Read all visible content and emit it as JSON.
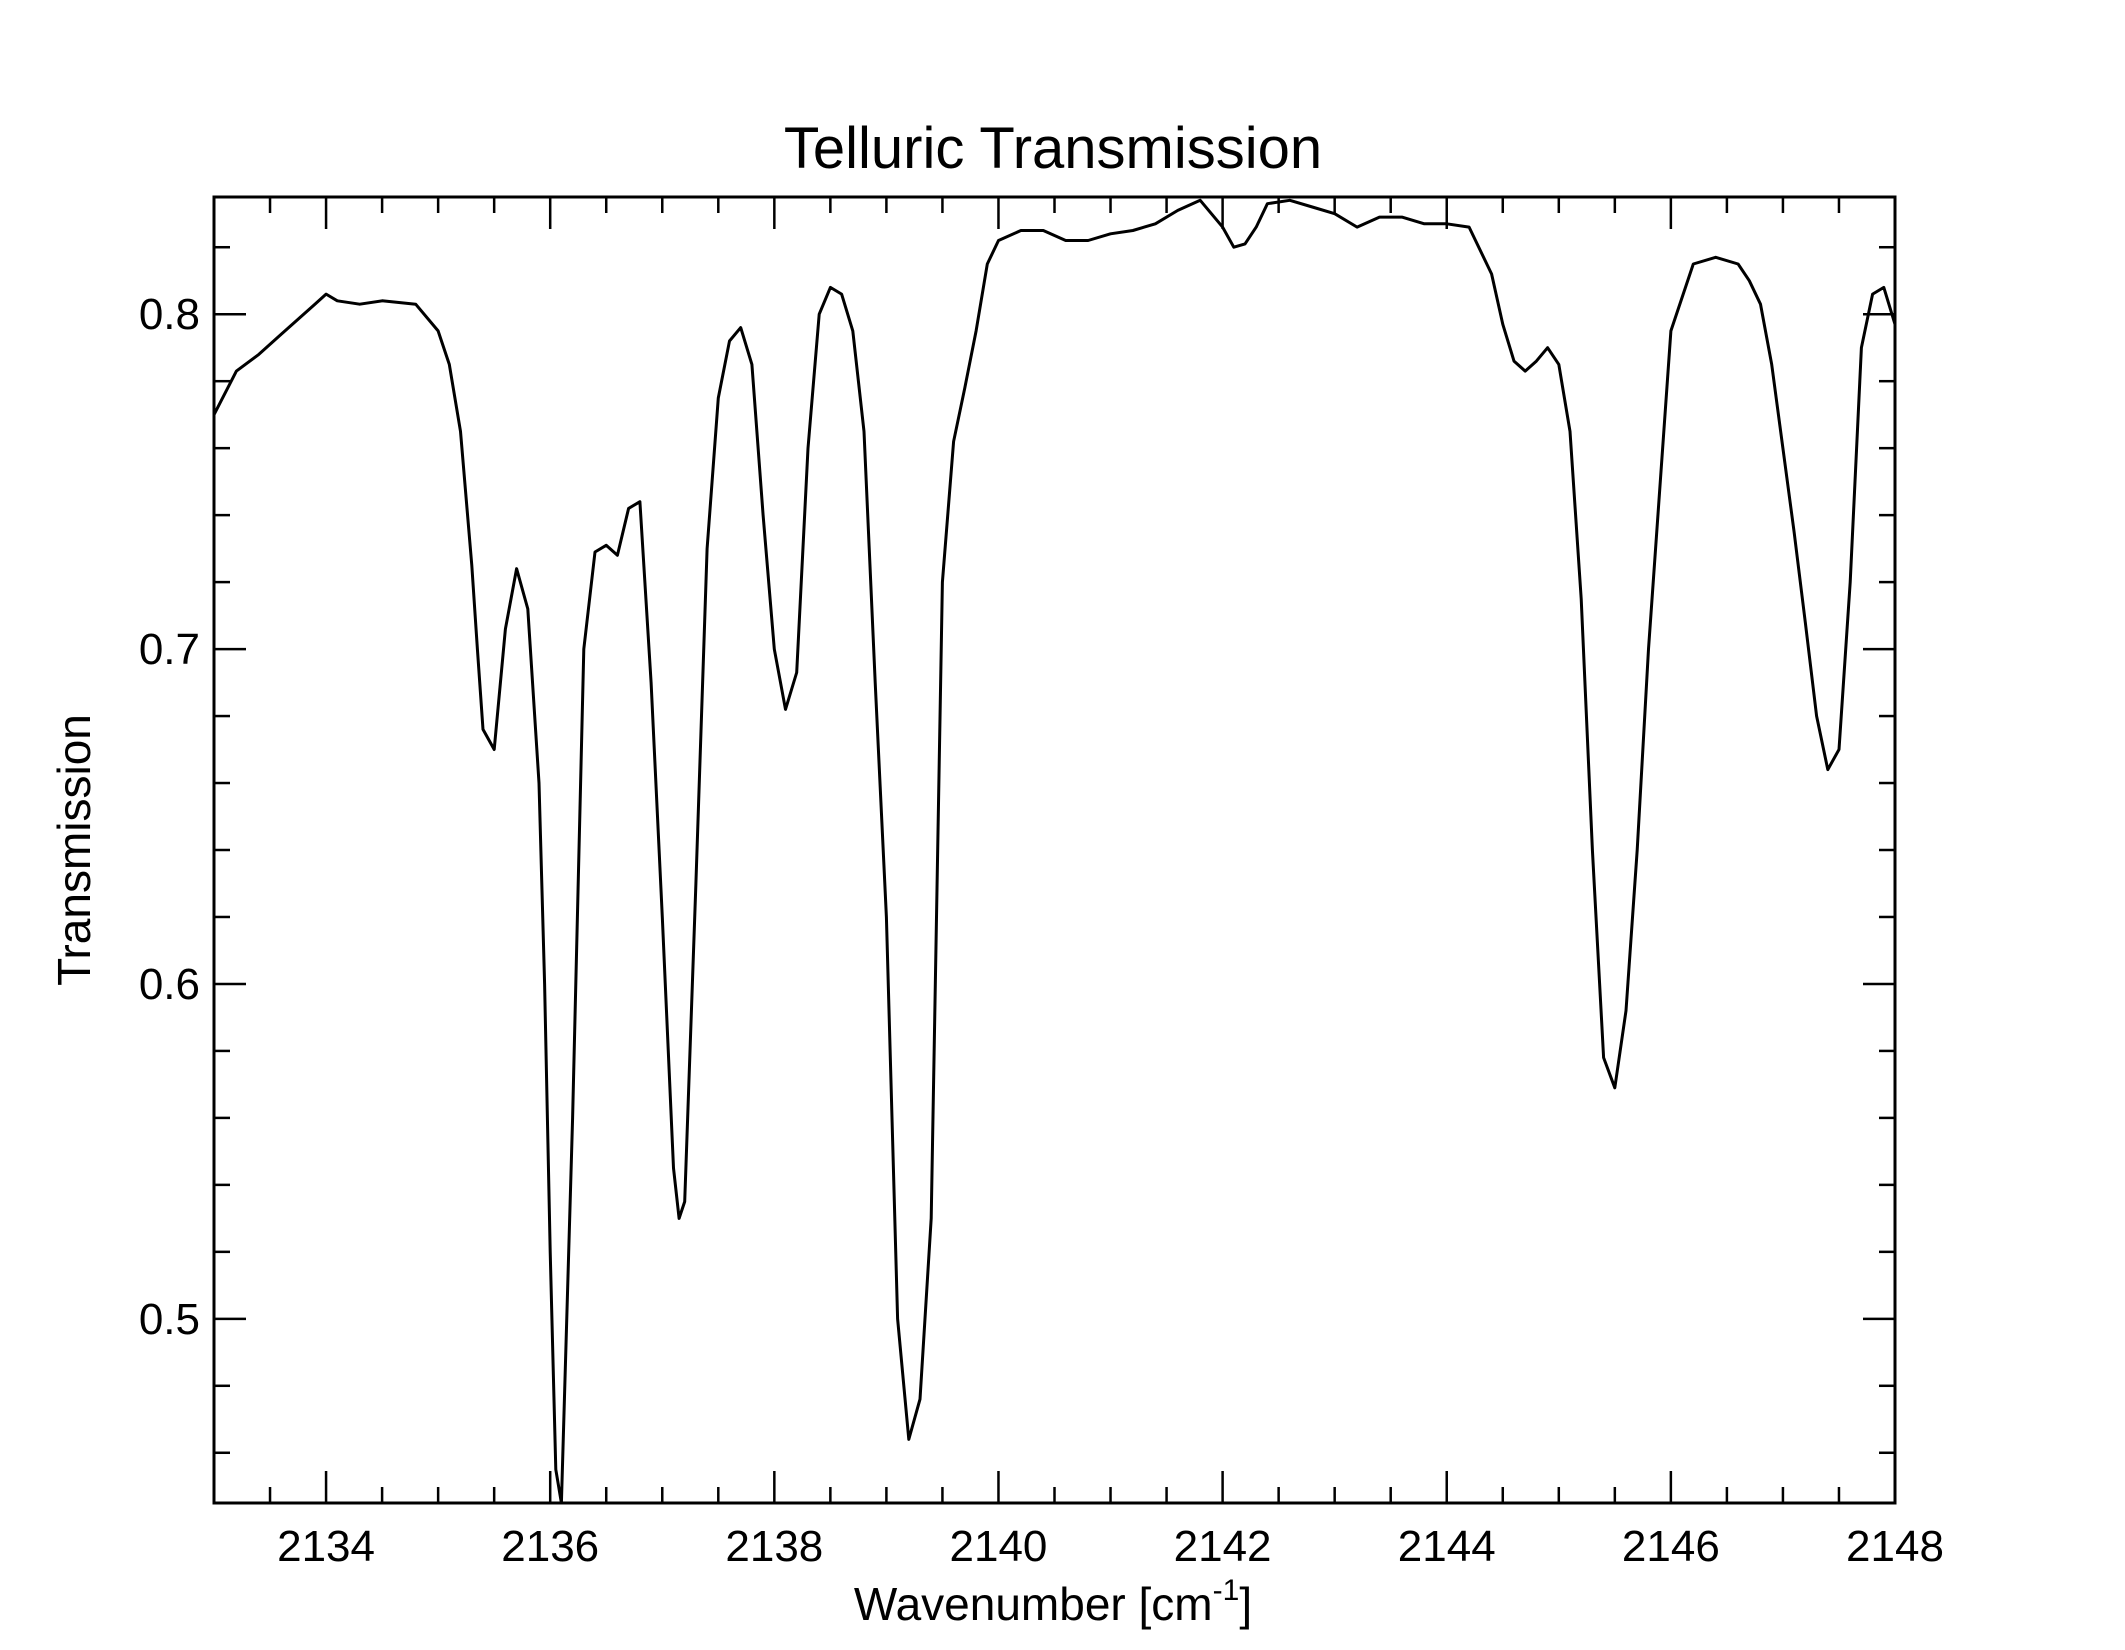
{
  "chart_data": {
    "type": "line",
    "title": "Telluric Transmission",
    "xlabel": "Wavenumber [cm",
    "xlabel_sup": "-1",
    "xlabel_tail": "]",
    "ylabel": "Transmission",
    "xlim": [
      2133,
      2148
    ],
    "ylim": [
      0.445,
      0.835
    ],
    "xticks": [
      2134,
      2136,
      2138,
      2140,
      2142,
      2144,
      2146,
      2148
    ],
    "xtick_labels": [
      "2134",
      "2136",
      "2138",
      "2140",
      "2142",
      "2144",
      "2146",
      "2148"
    ],
    "yticks": [
      0.5,
      0.6,
      0.7,
      0.8
    ],
    "ytick_labels": [
      "0.5",
      "0.6",
      "0.7",
      "0.8"
    ],
    "x_minor_step": 0.5,
    "y_minor_step": 0.02,
    "grid": false,
    "line_color": "#000000",
    "series": [
      {
        "x": [
          2133.0,
          2133.2,
          2133.4,
          2133.6,
          2133.9,
          2134.0,
          2134.1,
          2134.3,
          2134.5,
          2134.8,
          2135.0,
          2135.1,
          2135.2,
          2135.3,
          2135.35,
          2135.4,
          2135.5,
          2135.6,
          2135.7,
          2135.8,
          2135.9,
          2135.95,
          2136.0,
          2136.05,
          2136.1,
          2136.2,
          2136.3,
          2136.4,
          2136.5,
          2136.6,
          2136.7,
          2136.8,
          2136.9,
          2137.0,
          2137.1,
          2137.15,
          2137.2,
          2137.3,
          2137.4,
          2137.5,
          2137.6,
          2137.7,
          2137.8,
          2137.9,
          2138.0,
          2138.1,
          2138.2,
          2138.3,
          2138.4,
          2138.5,
          2138.6,
          2138.7,
          2138.8,
          2138.9,
          2139.0,
          2139.1,
          2139.2,
          2139.3,
          2139.4,
          2139.5,
          2139.6,
          2139.7,
          2139.8,
          2139.9,
          2140.0,
          2140.2,
          2140.4,
          2140.6,
          2140.8,
          2141.0,
          2141.2,
          2141.4,
          2141.6,
          2141.8,
          2142.0,
          2142.1,
          2142.2,
          2142.3,
          2142.4,
          2142.6,
          2142.8,
          2143.0,
          2143.2,
          2143.4,
          2143.6,
          2143.8,
          2144.0,
          2144.2,
          2144.4,
          2144.5,
          2144.6,
          2144.7,
          2144.8,
          2144.9,
          2145.0,
          2145.1,
          2145.2,
          2145.3,
          2145.4,
          2145.5,
          2145.6,
          2145.7,
          2145.8,
          2146.0,
          2146.2,
          2146.4,
          2146.6,
          2146.7,
          2146.8,
          2146.9,
          2147.0,
          2147.1,
          2147.2,
          2147.3,
          2147.4,
          2147.5,
          2147.6,
          2147.7,
          2147.8,
          2147.9,
          2148.0
        ],
        "y": [
          0.77,
          0.783,
          0.788,
          0.794,
          0.803,
          0.806,
          0.804,
          0.803,
          0.804,
          0.803,
          0.795,
          0.785,
          0.765,
          0.725,
          0.7,
          0.676,
          0.67,
          0.706,
          0.724,
          0.712,
          0.66,
          0.6,
          0.52,
          0.455,
          0.445,
          0.56,
          0.7,
          0.729,
          0.731,
          0.728,
          0.742,
          0.744,
          0.69,
          0.62,
          0.545,
          0.53,
          0.535,
          0.63,
          0.73,
          0.775,
          0.792,
          0.796,
          0.785,
          0.74,
          0.7,
          0.682,
          0.693,
          0.76,
          0.8,
          0.808,
          0.806,
          0.795,
          0.765,
          0.69,
          0.62,
          0.5,
          0.464,
          0.476,
          0.53,
          0.72,
          0.762,
          0.778,
          0.795,
          0.815,
          0.822,
          0.825,
          0.825,
          0.822,
          0.822,
          0.824,
          0.825,
          0.827,
          0.831,
          0.834,
          0.826,
          0.82,
          0.821,
          0.826,
          0.833,
          0.834,
          0.832,
          0.83,
          0.826,
          0.829,
          0.829,
          0.827,
          0.827,
          0.826,
          0.812,
          0.797,
          0.786,
          0.783,
          0.786,
          0.79,
          0.785,
          0.765,
          0.715,
          0.64,
          0.578,
          0.569,
          0.592,
          0.64,
          0.7,
          0.795,
          0.815,
          0.817,
          0.815,
          0.81,
          0.803,
          0.785,
          0.76,
          0.735,
          0.708,
          0.68,
          0.664,
          0.67,
          0.72,
          0.79,
          0.806,
          0.808,
          0.797
        ]
      }
    ]
  }
}
